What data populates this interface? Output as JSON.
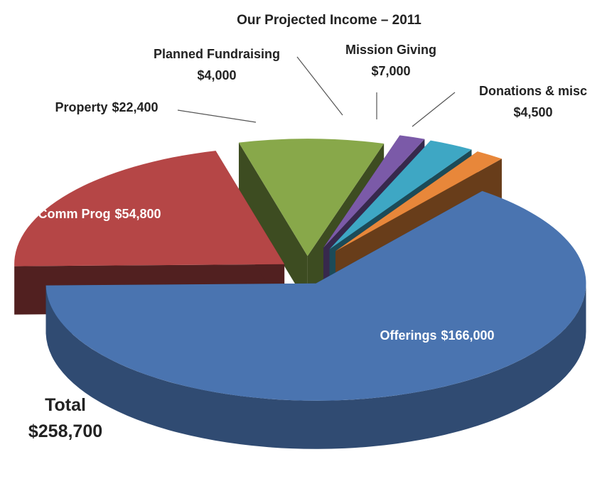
{
  "chart_data": {
    "type": "pie",
    "title": "Our Projected Income – 2011",
    "categories": [
      "Offerings",
      "Comm Prog",
      "Property",
      "Planned Fundraising",
      "Mission Giving",
      "Donations & misc"
    ],
    "values": [
      166000,
      54800,
      22400,
      4000,
      7000,
      4500
    ],
    "value_labels": [
      "$166,000",
      "$54,800",
      "$22,400",
      "$4,000",
      "$7,000",
      "$4,500"
    ],
    "colors": [
      "#4a74b0",
      "#b54646",
      "#88a84a",
      "#7b5aa8",
      "#3ea7c4",
      "#e8873a"
    ],
    "annotations": [
      "Total",
      "$258,700"
    ]
  }
}
